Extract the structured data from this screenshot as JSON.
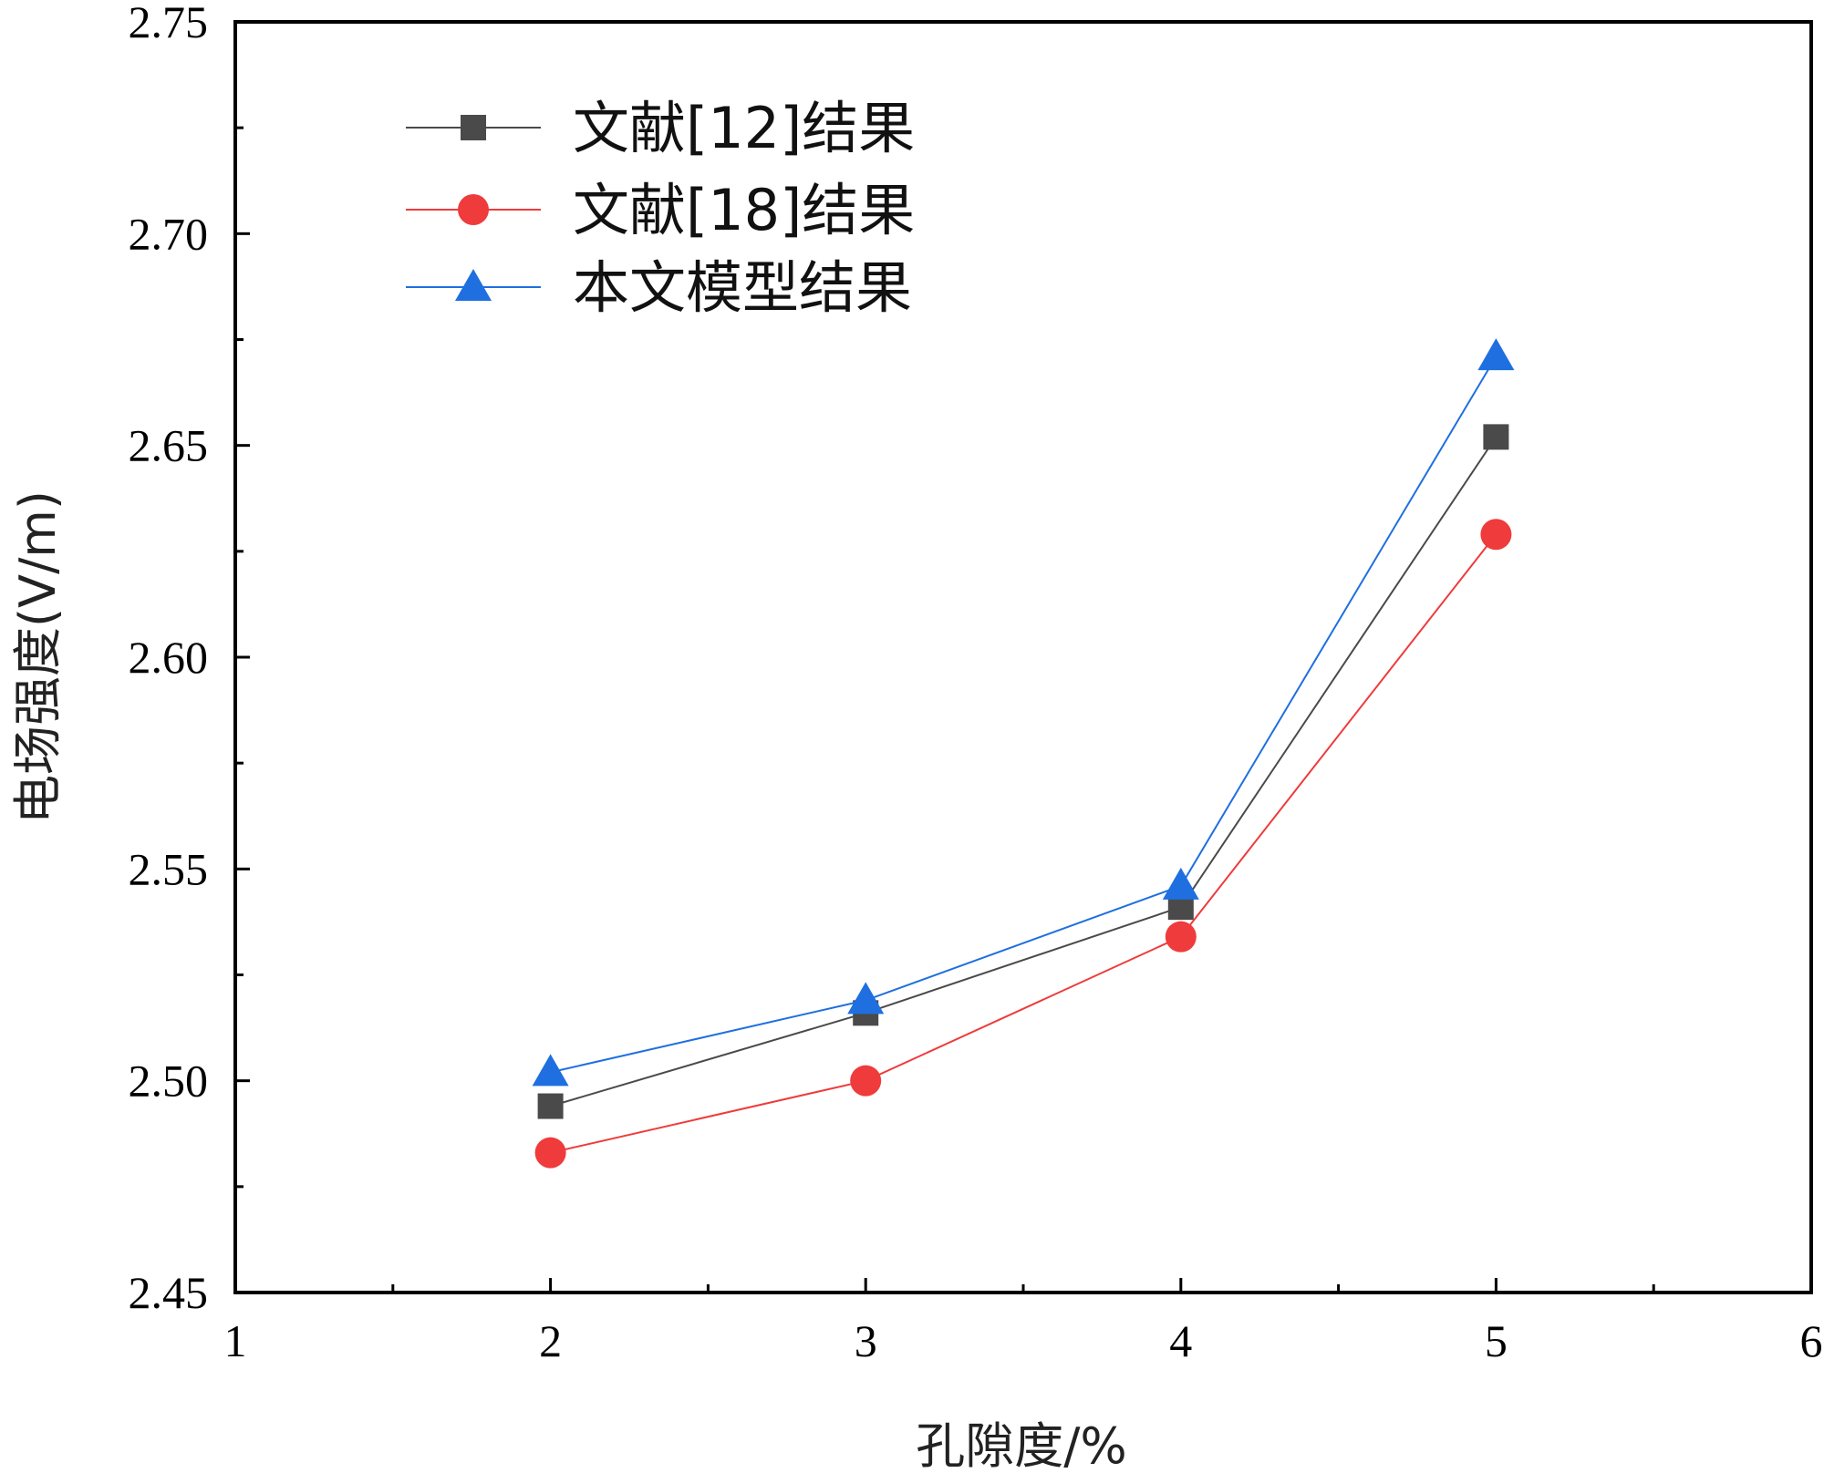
{
  "chart_data": {
    "type": "line",
    "title": "",
    "xlabel": "孔隙度/%",
    "ylabel": "电场强度(V/m)",
    "xlim": [
      1,
      6
    ],
    "ylim": [
      2.45,
      2.75
    ],
    "x_ticks": [
      "1",
      "2",
      "3",
      "4",
      "5",
      "6"
    ],
    "y_ticks": [
      "2.45",
      "2.50",
      "2.55",
      "2.60",
      "2.65",
      "2.70",
      "2.75"
    ],
    "x": [
      2,
      3,
      4,
      5
    ],
    "legend_position": "top-left",
    "series": [
      {
        "name": "文献[12]结果",
        "values": [
          2.494,
          2.516,
          2.541,
          2.652
        ],
        "color": "#4a4a4a",
        "marker": "square"
      },
      {
        "name": "文献[18]结果",
        "values": [
          2.483,
          2.5,
          2.534,
          2.629
        ],
        "color": "#ef3b3b",
        "marker": "circle"
      },
      {
        "name": "本文模型结果",
        "values": [
          2.502,
          2.519,
          2.546,
          2.671
        ],
        "color": "#1f6fe0",
        "marker": "triangle"
      }
    ]
  }
}
